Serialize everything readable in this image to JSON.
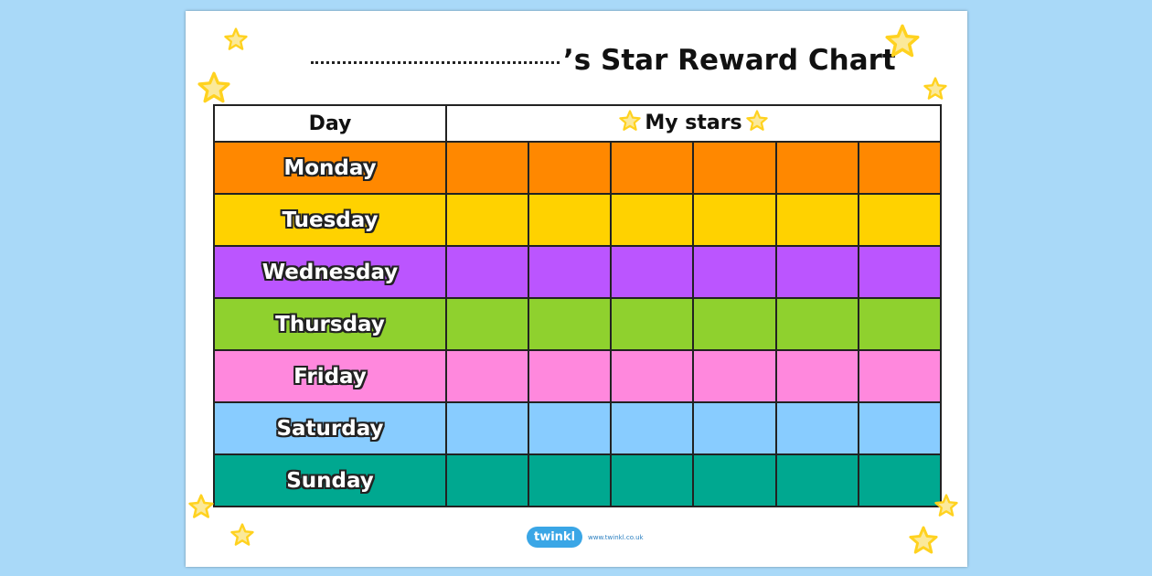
{
  "title": {
    "suffix": "’s Star Reward Chart"
  },
  "table": {
    "headers": [
      "Day",
      "My stars"
    ],
    "star_columns": 6,
    "rows": [
      {
        "day": "Monday",
        "color": "#ff8800"
      },
      {
        "day": "Tuesday",
        "color": "#ffd200"
      },
      {
        "day": "Wednesday",
        "color": "#bb55ff"
      },
      {
        "day": "Thursday",
        "color": "#8fd12e"
      },
      {
        "day": "Friday",
        "color": "#ff88dd"
      },
      {
        "day": "Saturday",
        "color": "#88ccff"
      },
      {
        "day": "Sunday",
        "color": "#00a890"
      }
    ]
  },
  "decorations": {
    "icon": "star-icon",
    "star_color": "#ffd21f"
  },
  "footer": {
    "logo": "twinkl",
    "url": "www.twinkl.co.uk"
  }
}
